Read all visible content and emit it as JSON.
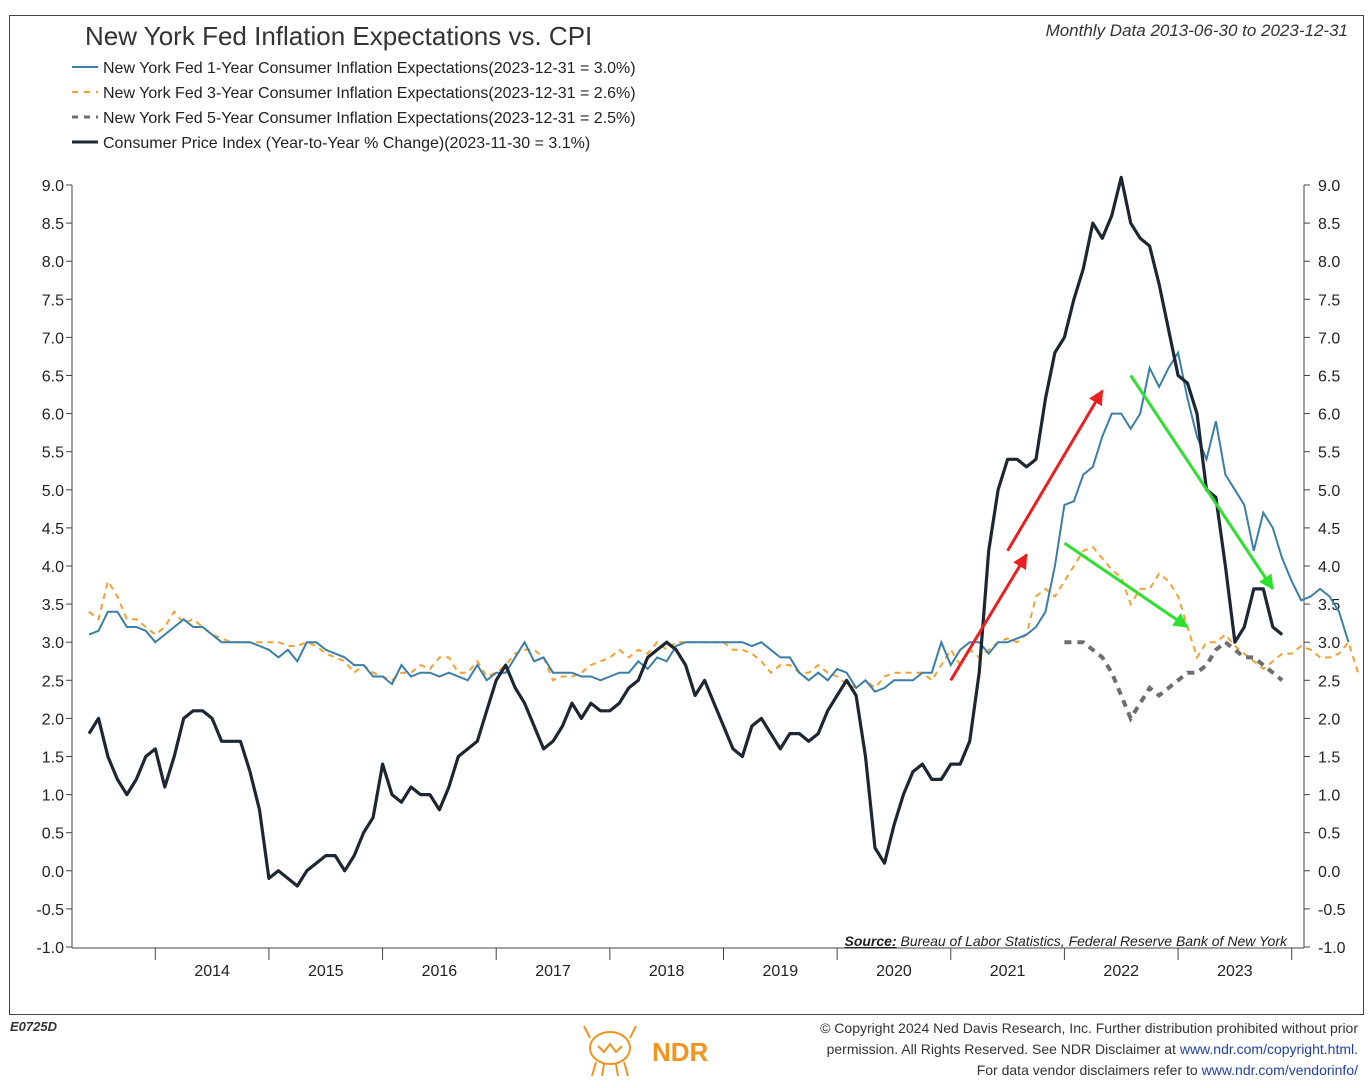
{
  "header": {
    "title": "New York Fed Inflation Expectations vs. CPI",
    "subtitle": "Monthly Data 2013-06-30 to 2023-12-31"
  },
  "legend": {
    "items": [
      "New York Fed 1-Year Consumer Inflation Expectations(2023-12-31 = 3.0%)",
      "New York Fed 3-Year Consumer Inflation Expectations(2023-12-31 = 2.6%)",
      "New York Fed 5-Year Consumer Inflation Expectations(2023-12-31 = 2.5%)",
      "Consumer Price Index (Year-to-Year % Change)(2023-11-30 = 3.1%)"
    ]
  },
  "source": {
    "label": "Source:",
    "text": "Bureau of Labor Statistics, Federal Reserve Bank of New York"
  },
  "footer": {
    "chart_id": "E0725D",
    "logo_text": "NDR",
    "copyright_line1": "© Copyright 2024 Ned Davis Research, Inc. Further distribution prohibited without prior",
    "copyright_line2_text": "permission. All Rights Reserved. See NDR Disclaimer at ",
    "copyright_line2_link": "www.ndr.com/copyright.html.",
    "copyright_line3_text": "For data vendor disclaimers refer to ",
    "copyright_line3_link": "www.ndr.com/vendorinfo/"
  },
  "colors": {
    "one_year": "#3a7fa8",
    "three_year": "#f5a030",
    "five_year": "#6e6e6e",
    "cpi": "#1c2733",
    "arrow_up": "#e82020",
    "arrow_down": "#2ee02e",
    "logo": "#f39320"
  },
  "chart_data": {
    "type": "line",
    "x_start": "2013-06",
    "x_ticks": [
      "2014",
      "2015",
      "2016",
      "2017",
      "2018",
      "2019",
      "2020",
      "2021",
      "2022",
      "2023"
    ],
    "y_ticks": [
      "9.0",
      "8.5",
      "8.0",
      "7.5",
      "7.0",
      "6.5",
      "6.0",
      "5.5",
      "5.0",
      "4.5",
      "4.0",
      "3.5",
      "3.0",
      "2.5",
      "2.0",
      "1.5",
      "1.0",
      "0.5",
      "0.0",
      "-0.5",
      "-1.0"
    ],
    "ylim": [
      -1.0,
      9.0
    ],
    "grid": false,
    "legend_position": "top-left",
    "series": [
      {
        "name": "New York Fed 1-Year Consumer Inflation Expectations",
        "key": "one_year",
        "start": "2013-06",
        "values": [
          3.1,
          3.15,
          3.4,
          3.4,
          3.2,
          3.2,
          3.15,
          3.0,
          3.1,
          3.2,
          3.3,
          3.2,
          3.2,
          3.1,
          3.0,
          3.0,
          3.0,
          3.0,
          2.95,
          2.9,
          2.8,
          2.9,
          2.75,
          3.0,
          3.0,
          2.9,
          2.85,
          2.8,
          2.7,
          2.7,
          2.55,
          2.55,
          2.45,
          2.7,
          2.55,
          2.6,
          2.6,
          2.55,
          2.6,
          2.55,
          2.5,
          2.7,
          2.5,
          2.6,
          2.6,
          2.8,
          3.0,
          2.75,
          2.8,
          2.6,
          2.6,
          2.6,
          2.55,
          2.55,
          2.5,
          2.55,
          2.6,
          2.6,
          2.75,
          2.65,
          2.8,
          2.75,
          2.95,
          3.0,
          3.0,
          3.0,
          3.0,
          3.0,
          3.0,
          3.0,
          2.95,
          3.0,
          2.9,
          2.8,
          2.8,
          2.6,
          2.5,
          2.6,
          2.5,
          2.65,
          2.6,
          2.4,
          2.5,
          2.35,
          2.4,
          2.5,
          2.5,
          2.5,
          2.6,
          2.6,
          3.0,
          2.7,
          2.9,
          3.0,
          3.0,
          2.85,
          3.0,
          3.0,
          3.05,
          3.1,
          3.2,
          3.4,
          4.0,
          4.8,
          4.85,
          5.2,
          5.3,
          5.7,
          6.0,
          6.0,
          5.8,
          6.0,
          6.6,
          6.35,
          6.6,
          6.8,
          6.2,
          5.7,
          5.4,
          5.9,
          5.2,
          5.0,
          4.8,
          4.2,
          4.7,
          4.5,
          4.1,
          3.8,
          3.55,
          3.6,
          3.7,
          3.6,
          3.4,
          3.0
        ]
      },
      {
        "name": "New York Fed 3-Year Consumer Inflation Expectations",
        "key": "three_year",
        "start": "2013-06",
        "values": [
          3.4,
          3.3,
          3.8,
          3.6,
          3.3,
          3.3,
          3.2,
          3.1,
          3.2,
          3.4,
          3.25,
          3.3,
          3.2,
          3.1,
          3.05,
          3.0,
          3.0,
          3.0,
          3.0,
          3.0,
          3.0,
          2.95,
          2.95,
          3.0,
          2.95,
          2.85,
          2.8,
          2.75,
          2.6,
          2.7,
          2.6,
          2.55,
          2.5,
          2.6,
          2.6,
          2.7,
          2.65,
          2.8,
          2.8,
          2.6,
          2.6,
          2.75,
          2.55,
          2.6,
          2.7,
          2.85,
          2.9,
          2.9,
          2.8,
          2.5,
          2.55,
          2.55,
          2.6,
          2.7,
          2.75,
          2.8,
          2.9,
          2.8,
          2.9,
          2.85,
          3.0,
          2.9,
          3.0,
          3.0,
          3.0,
          3.0,
          3.0,
          3.0,
          2.9,
          2.9,
          2.85,
          2.75,
          2.6,
          2.7,
          2.7,
          2.6,
          2.6,
          2.7,
          2.6,
          2.55,
          2.45,
          2.4,
          2.5,
          2.4,
          2.55,
          2.6,
          2.6,
          2.6,
          2.6,
          2.5,
          2.7,
          2.9,
          2.7,
          2.9,
          2.8,
          2.9,
          3.0,
          3.05,
          3.0,
          3.1,
          3.6,
          3.7,
          3.6,
          3.8,
          4.0,
          4.2,
          4.25,
          4.1,
          3.95,
          3.85,
          3.5,
          3.7,
          3.7,
          3.9,
          3.8,
          3.6,
          3.2,
          2.8,
          3.0,
          3.0,
          3.1,
          2.95,
          2.85,
          2.75,
          2.65,
          2.75,
          2.85,
          2.85,
          2.95,
          2.9,
          2.8,
          2.8,
          2.85,
          3.0,
          2.6
        ]
      },
      {
        "name": "New York Fed 5-Year Consumer Inflation Expectations",
        "key": "five_year",
        "start": "2022-01",
        "values": [
          3.0,
          3.0,
          3.0,
          2.9,
          2.8,
          2.6,
          2.3,
          2.0,
          2.2,
          2.4,
          2.3,
          2.4,
          2.5,
          2.6,
          2.6,
          2.7,
          2.9,
          3.0,
          2.9,
          2.8,
          2.8,
          2.7,
          2.6,
          2.5
        ]
      },
      {
        "name": "Consumer Price Index (Year-to-Year % Change)",
        "key": "cpi",
        "start": "2013-06",
        "values": [
          1.8,
          2.0,
          1.5,
          1.2,
          1.0,
          1.2,
          1.5,
          1.6,
          1.1,
          1.5,
          2.0,
          2.1,
          2.1,
          2.0,
          1.7,
          1.7,
          1.7,
          1.3,
          0.8,
          -0.1,
          0.0,
          -0.1,
          -0.2,
          0.0,
          0.1,
          0.2,
          0.2,
          0.0,
          0.2,
          0.5,
          0.7,
          1.4,
          1.0,
          0.9,
          1.1,
          1.0,
          1.0,
          0.8,
          1.1,
          1.5,
          1.6,
          1.7,
          2.1,
          2.5,
          2.7,
          2.4,
          2.2,
          1.9,
          1.6,
          1.7,
          1.9,
          2.2,
          2.0,
          2.2,
          2.1,
          2.1,
          2.2,
          2.4,
          2.5,
          2.8,
          2.9,
          3.0,
          2.9,
          2.7,
          2.3,
          2.5,
          2.2,
          1.9,
          1.6,
          1.5,
          1.9,
          2.0,
          1.8,
          1.6,
          1.8,
          1.8,
          1.7,
          1.8,
          2.1,
          2.3,
          2.5,
          2.3,
          1.5,
          0.3,
          0.1,
          0.6,
          1.0,
          1.3,
          1.4,
          1.2,
          1.2,
          1.4,
          1.4,
          1.7,
          2.6,
          4.2,
          5.0,
          5.4,
          5.4,
          5.3,
          5.4,
          6.2,
          6.8,
          7.0,
          7.5,
          7.9,
          8.5,
          8.3,
          8.6,
          9.1,
          8.5,
          8.3,
          8.2,
          7.7,
          7.1,
          6.5,
          6.4,
          6.0,
          5.0,
          4.9,
          4.0,
          3.0,
          3.2,
          3.7,
          3.7,
          3.2,
          3.1
        ]
      }
    ],
    "annotations": [
      {
        "type": "arrow",
        "color": "red",
        "from": [
          "2021-01",
          2.5
        ],
        "to": [
          "2021-09",
          4.15
        ]
      },
      {
        "type": "arrow",
        "color": "red",
        "from": [
          "2021-07",
          4.2
        ],
        "to": [
          "2022-05",
          6.3
        ]
      },
      {
        "type": "arrow",
        "color": "green",
        "from": [
          "2022-08",
          6.5
        ],
        "to": [
          "2023-11",
          3.7
        ]
      },
      {
        "type": "arrow",
        "color": "green",
        "from": [
          "2022-01",
          4.3
        ],
        "to": [
          "2023-02",
          3.2
        ]
      }
    ]
  }
}
